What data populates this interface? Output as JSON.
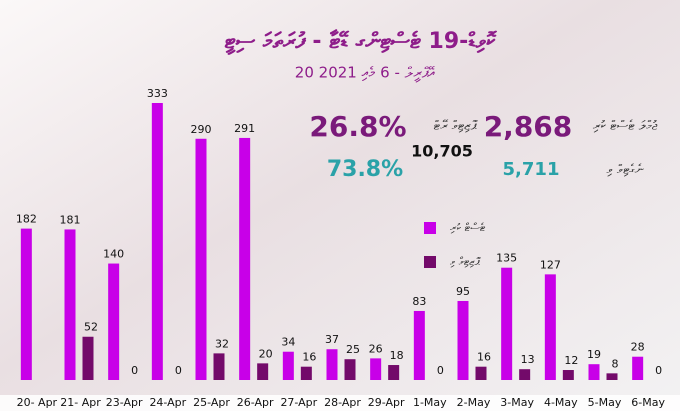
{
  "chart_data": {
    "type": "bar",
    "title": "ކޮވިޑް-19 ޓެސްޓިންގ ޑޭޓާ - ފުރަތަމަ ސިޓީ",
    "subtitle": "20 އޭޕްރީލް - 6 މެއި 2021",
    "categories": [
      "20- Apr",
      "21- Apr",
      "23-Apr",
      "24-Apr",
      "25-Apr",
      "26-Apr",
      "27-Apr",
      "28-Apr",
      "29-Apr",
      "1-May",
      "2-May",
      "3-May",
      "4-May",
      "5-May",
      "6-May"
    ],
    "series": [
      {
        "name": "ޓެސްޓް ކުރި",
        "color": "#c800e8",
        "values": [
          182,
          181,
          140,
          333,
          290,
          291,
          34,
          37,
          26,
          83,
          95,
          135,
          127,
          19,
          28
        ]
      },
      {
        "name": "ޕޮޒިޓިވް ވި",
        "color": "#730a6a",
        "values": [
          null,
          52,
          0,
          0,
          32,
          20,
          16,
          25,
          18,
          0,
          16,
          13,
          12,
          8,
          0
        ]
      }
    ],
    "ylim": [
      0,
      333
    ]
  },
  "stats": {
    "total_value": "2,868",
    "total_label": "ޖުމްލަ ޓެސްޓް ކުރި",
    "rate_value": "26.8%",
    "rate_label": "ޕޮޒިޓިވް ރޭޓް",
    "overall_value": "10,705",
    "negative_value": "5,711",
    "negative_label": "ނެގެޓިވް ވި",
    "negative_rate": "73.8%"
  }
}
